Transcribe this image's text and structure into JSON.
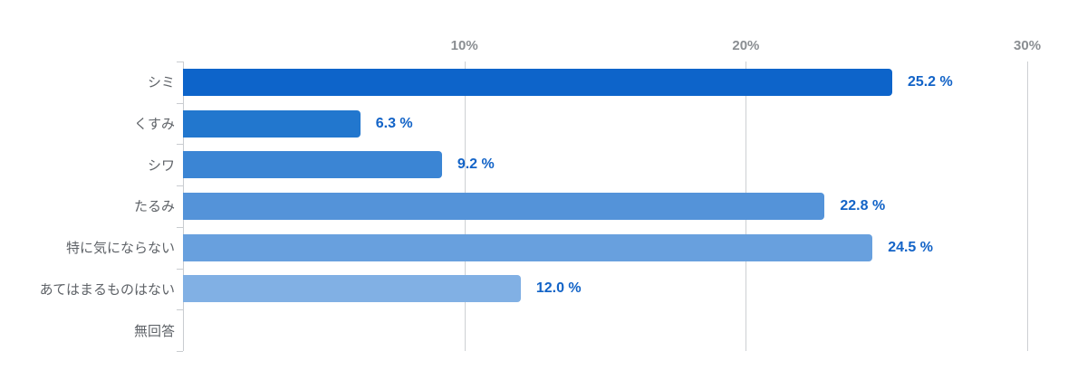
{
  "chart_data": {
    "type": "bar",
    "orientation": "horizontal",
    "title": "",
    "xlabel": "",
    "ylabel": "",
    "categories": [
      "シミ",
      "くすみ",
      "シワ",
      "たるみ",
      "特に気にならない",
      "あてはまるものはない",
      "無回答"
    ],
    "values": [
      25.2,
      6.3,
      9.2,
      22.8,
      24.5,
      12.0,
      0
    ],
    "value_labels": [
      "25.2 %",
      "6.3 %",
      "9.2 %",
      "22.8 %",
      "24.5 %",
      "12.0 %",
      ""
    ],
    "x_ticks": [
      {
        "label": "10%",
        "value": 10
      },
      {
        "label": "20%",
        "value": 20
      },
      {
        "label": "30%",
        "value": 30
      }
    ],
    "xlim": [
      0,
      31.8
    ],
    "grid": "vertical",
    "legend": "none",
    "bar_colors": [
      "#0d64ca",
      "#2277ce",
      "#3b85d4",
      "#5493d9",
      "#68a0de",
      "#81b0e4"
    ],
    "colors": {
      "value_label": "#1263c7",
      "category_label": "#5f6368",
      "tick_label": "#8a8e92",
      "axis_line": "#c9ccd0",
      "gridline": "#cdd0d3",
      "background": "#ffffff"
    }
  }
}
